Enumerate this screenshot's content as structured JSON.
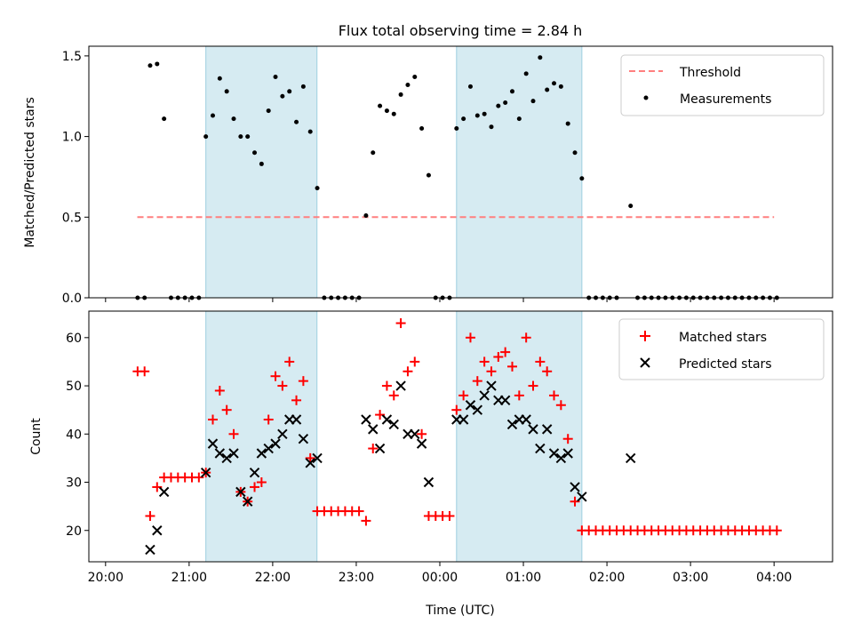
{
  "chart_data": [
    {
      "type": "scatter",
      "title": "Flux total observing time = 2.84 h",
      "ylabel": "Matched/Predicted stars",
      "xlabel": "",
      "x_unit": "hours since 20:00 UTC",
      "ylim": [
        0,
        1.56
      ],
      "yticks": [
        0.0,
        0.5,
        1.0,
        1.5
      ],
      "ytick_labels": [
        "0.0",
        "0.5",
        "1.0",
        "1.5"
      ],
      "shaded_intervals": [
        [
          21.2,
          22.53
        ],
        [
          0.2,
          1.7
        ]
      ],
      "threshold": {
        "name": "Threshold",
        "value": 0.5,
        "x_start": 20.38,
        "x_end": 4.0,
        "color": "#ff7f7f"
      },
      "legend": {
        "position": "upper right",
        "entries": [
          "Threshold",
          "Measurements"
        ]
      },
      "series": [
        {
          "name": "Measurements",
          "color": "#000000",
          "marker": "dot",
          "points": [
            [
              "20:23",
              0
            ],
            [
              "20:28",
              0
            ],
            [
              "20:32",
              1.44
            ],
            [
              "20:37",
              1.45
            ],
            [
              "20:42",
              1.11
            ],
            [
              "20:47",
              0
            ],
            [
              "20:52",
              0
            ],
            [
              "20:57",
              0
            ],
            [
              "21:02",
              0
            ],
            [
              "21:07",
              0
            ],
            [
              "21:12",
              1.0
            ],
            [
              "21:17",
              1.13
            ],
            [
              "21:22",
              1.36
            ],
            [
              "21:27",
              1.28
            ],
            [
              "21:32",
              1.11
            ],
            [
              "21:37",
              1.0
            ],
            [
              "21:42",
              1.0
            ],
            [
              "21:47",
              0.9
            ],
            [
              "21:52",
              0.83
            ],
            [
              "21:57",
              1.16
            ],
            [
              "22:02",
              1.37
            ],
            [
              "22:07",
              1.25
            ],
            [
              "22:12",
              1.28
            ],
            [
              "22:17",
              1.09
            ],
            [
              "22:22",
              1.31
            ],
            [
              "22:27",
              1.03
            ],
            [
              "22:32",
              0.68
            ],
            [
              "22:37",
              0
            ],
            [
              "22:42",
              0
            ],
            [
              "22:47",
              0
            ],
            [
              "22:52",
              0
            ],
            [
              "22:57",
              0
            ],
            [
              "23:02",
              0
            ],
            [
              "23:07",
              0.51
            ],
            [
              "23:12",
              0.9
            ],
            [
              "23:17",
              1.19
            ],
            [
              "23:22",
              1.16
            ],
            [
              "23:27",
              1.14
            ],
            [
              "23:32",
              1.26
            ],
            [
              "23:37",
              1.32
            ],
            [
              "23:42",
              1.37
            ],
            [
              "23:47",
              1.05
            ],
            [
              "23:52",
              0.76
            ],
            [
              "23:57",
              0
            ],
            [
              "00:02",
              0
            ],
            [
              "00:07",
              0
            ],
            [
              "00:12",
              1.05
            ],
            [
              "00:17",
              1.11
            ],
            [
              "00:22",
              1.31
            ],
            [
              "00:27",
              1.13
            ],
            [
              "00:32",
              1.14
            ],
            [
              "00:37",
              1.06
            ],
            [
              "00:42",
              1.19
            ],
            [
              "00:47",
              1.21
            ],
            [
              "00:52",
              1.28
            ],
            [
              "00:57",
              1.11
            ],
            [
              "01:02",
              1.39
            ],
            [
              "01:07",
              1.22
            ],
            [
              "01:12",
              1.49
            ],
            [
              "01:17",
              1.29
            ],
            [
              "01:22",
              1.33
            ],
            [
              "01:27",
              1.31
            ],
            [
              "01:32",
              1.08
            ],
            [
              "01:37",
              0.9
            ],
            [
              "01:42",
              0.74
            ],
            [
              "01:47",
              0
            ],
            [
              "01:52",
              0
            ],
            [
              "01:57",
              0
            ],
            [
              "02:02",
              0
            ],
            [
              "02:07",
              0
            ],
            [
              "02:17",
              0.57
            ],
            [
              "02:22",
              0
            ],
            [
              "02:27",
              0
            ],
            [
              "02:32",
              0
            ],
            [
              "02:37",
              0
            ],
            [
              "02:42",
              0
            ],
            [
              "02:47",
              0
            ],
            [
              "02:52",
              0
            ],
            [
              "02:57",
              0
            ],
            [
              "03:02",
              0
            ],
            [
              "03:07",
              0
            ],
            [
              "03:12",
              0
            ],
            [
              "03:17",
              0
            ],
            [
              "03:22",
              0
            ],
            [
              "03:27",
              0
            ],
            [
              "03:32",
              0
            ],
            [
              "03:37",
              0
            ],
            [
              "03:42",
              0
            ],
            [
              "03:47",
              0
            ],
            [
              "03:52",
              0
            ],
            [
              "03:57",
              0
            ],
            [
              "04:02",
              0
            ]
          ]
        }
      ]
    },
    {
      "type": "scatter",
      "title": "",
      "ylabel": "Count",
      "xlabel": "Time (UTC)",
      "ylim": [
        13.5,
        65.5
      ],
      "yticks": [
        20,
        30,
        40,
        50,
        60
      ],
      "ytick_labels": [
        "20",
        "30",
        "40",
        "50",
        "60"
      ],
      "xticks": [
        "20:00",
        "21:00",
        "22:00",
        "23:00",
        "00:00",
        "01:00",
        "02:00",
        "03:00",
        "04:00"
      ],
      "shaded_intervals": [
        [
          21.2,
          22.53
        ],
        [
          0.2,
          1.7
        ]
      ],
      "legend": {
        "position": "upper right",
        "entries": [
          "Matched stars",
          "Predicted stars"
        ]
      },
      "series": [
        {
          "name": "Matched stars",
          "color": "#ff0000",
          "marker": "plus",
          "points": [
            [
              "20:23",
              53
            ],
            [
              "20:28",
              53
            ],
            [
              "20:32",
              23
            ],
            [
              "20:37",
              29
            ],
            [
              "20:42",
              31
            ],
            [
              "20:47",
              31
            ],
            [
              "20:52",
              31
            ],
            [
              "20:57",
              31
            ],
            [
              "21:02",
              31
            ],
            [
              "21:07",
              31
            ],
            [
              "21:12",
              32
            ],
            [
              "21:17",
              43
            ],
            [
              "21:22",
              49
            ],
            [
              "21:27",
              45
            ],
            [
              "21:32",
              40
            ],
            [
              "21:37",
              28
            ],
            [
              "21:42",
              26
            ],
            [
              "21:47",
              29
            ],
            [
              "21:52",
              30
            ],
            [
              "21:57",
              43
            ],
            [
              "22:02",
              52
            ],
            [
              "22:07",
              50
            ],
            [
              "22:12",
              55
            ],
            [
              "22:17",
              47
            ],
            [
              "22:22",
              51
            ],
            [
              "22:27",
              35
            ],
            [
              "22:32",
              24
            ],
            [
              "22:37",
              24
            ],
            [
              "22:42",
              24
            ],
            [
              "22:47",
              24
            ],
            [
              "22:52",
              24
            ],
            [
              "22:57",
              24
            ],
            [
              "23:02",
              24
            ],
            [
              "23:07",
              22
            ],
            [
              "23:12",
              37
            ],
            [
              "23:17",
              44
            ],
            [
              "23:22",
              50
            ],
            [
              "23:27",
              48
            ],
            [
              "23:32",
              63
            ],
            [
              "23:37",
              53
            ],
            [
              "23:42",
              55
            ],
            [
              "23:47",
              40
            ],
            [
              "23:52",
              23
            ],
            [
              "23:57",
              23
            ],
            [
              "00:02",
              23
            ],
            [
              "00:07",
              23
            ],
            [
              "00:12",
              45
            ],
            [
              "00:17",
              48
            ],
            [
              "00:22",
              60
            ],
            [
              "00:27",
              51
            ],
            [
              "00:32",
              55
            ],
            [
              "00:37",
              53
            ],
            [
              "00:42",
              56
            ],
            [
              "00:47",
              57
            ],
            [
              "00:52",
              54
            ],
            [
              "00:57",
              48
            ],
            [
              "01:02",
              60
            ],
            [
              "01:07",
              50
            ],
            [
              "01:12",
              55
            ],
            [
              "01:17",
              53
            ],
            [
              "01:22",
              48
            ],
            [
              "01:27",
              46
            ],
            [
              "01:32",
              39
            ],
            [
              "01:37",
              26
            ],
            [
              "01:42",
              20
            ],
            [
              "01:47",
              20
            ],
            [
              "01:52",
              20
            ],
            [
              "01:57",
              20
            ],
            [
              "02:02",
              20
            ],
            [
              "02:07",
              20
            ],
            [
              "02:12",
              20
            ],
            [
              "02:17",
              20
            ],
            [
              "02:22",
              20
            ],
            [
              "02:27",
              20
            ],
            [
              "02:32",
              20
            ],
            [
              "02:37",
              20
            ],
            [
              "02:42",
              20
            ],
            [
              "02:47",
              20
            ],
            [
              "02:52",
              20
            ],
            [
              "02:57",
              20
            ],
            [
              "03:02",
              20
            ],
            [
              "03:07",
              20
            ],
            [
              "03:12",
              20
            ],
            [
              "03:17",
              20
            ],
            [
              "03:22",
              20
            ],
            [
              "03:27",
              20
            ],
            [
              "03:32",
              20
            ],
            [
              "03:37",
              20
            ],
            [
              "03:42",
              20
            ],
            [
              "03:47",
              20
            ],
            [
              "03:52",
              20
            ],
            [
              "03:57",
              20
            ],
            [
              "04:02",
              20
            ]
          ]
        },
        {
          "name": "Predicted stars",
          "color": "#000000",
          "marker": "x",
          "points": [
            [
              "20:32",
              16
            ],
            [
              "20:37",
              20
            ],
            [
              "20:42",
              28
            ],
            [
              "21:12",
              32
            ],
            [
              "21:17",
              38
            ],
            [
              "21:22",
              36
            ],
            [
              "21:27",
              35
            ],
            [
              "21:32",
              36
            ],
            [
              "21:37",
              28
            ],
            [
              "21:42",
              26
            ],
            [
              "21:47",
              32
            ],
            [
              "21:52",
              36
            ],
            [
              "21:57",
              37
            ],
            [
              "22:02",
              38
            ],
            [
              "22:07",
              40
            ],
            [
              "22:12",
              43
            ],
            [
              "22:17",
              43
            ],
            [
              "22:22",
              39
            ],
            [
              "22:27",
              34
            ],
            [
              "22:32",
              35
            ],
            [
              "23:07",
              43
            ],
            [
              "23:12",
              41
            ],
            [
              "23:17",
              37
            ],
            [
              "23:22",
              43
            ],
            [
              "23:27",
              42
            ],
            [
              "23:32",
              50
            ],
            [
              "23:37",
              40
            ],
            [
              "23:42",
              40
            ],
            [
              "23:47",
              38
            ],
            [
              "23:52",
              30
            ],
            [
              "00:12",
              43
            ],
            [
              "00:17",
              43
            ],
            [
              "00:22",
              46
            ],
            [
              "00:27",
              45
            ],
            [
              "00:32",
              48
            ],
            [
              "00:37",
              50
            ],
            [
              "00:42",
              47
            ],
            [
              "00:47",
              47
            ],
            [
              "00:52",
              42
            ],
            [
              "00:57",
              43
            ],
            [
              "01:02",
              43
            ],
            [
              "01:07",
              41
            ],
            [
              "01:12",
              37
            ],
            [
              "01:17",
              41
            ],
            [
              "01:22",
              36
            ],
            [
              "01:27",
              35
            ],
            [
              "01:32",
              36
            ],
            [
              "01:37",
              29
            ],
            [
              "01:42",
              27
            ],
            [
              "02:17",
              35
            ]
          ]
        }
      ]
    }
  ]
}
